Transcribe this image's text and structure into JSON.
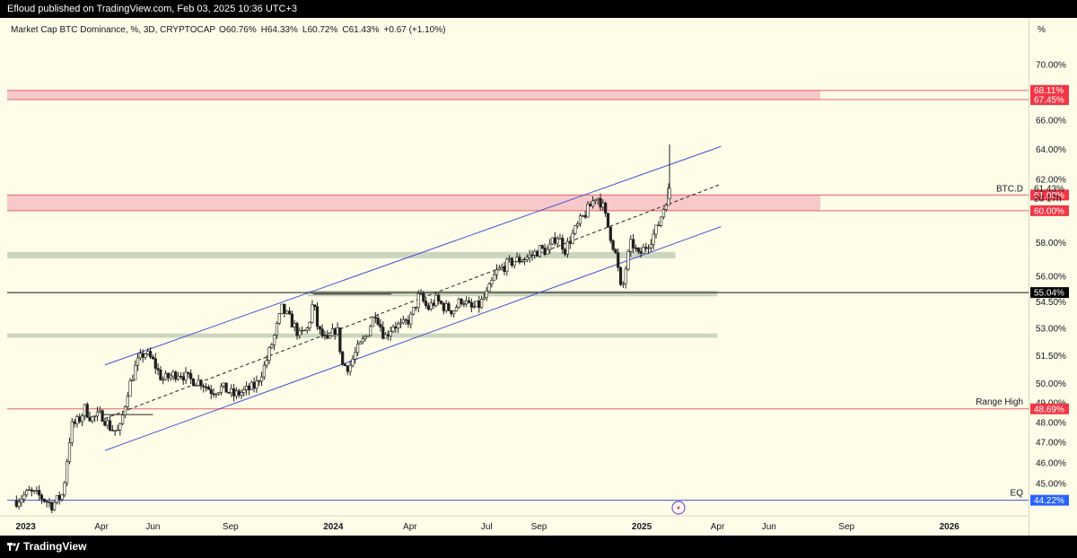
{
  "header": {
    "published": "Efloud published on TradingView.com, Feb 03, 2025 10:36 UTC+3"
  },
  "footer": {
    "brand": "TradingView"
  },
  "colors": {
    "background": "#fffde8",
    "candle": "#1e1e1e",
    "channel": "#3f51d8",
    "red_zone": "#f8c9c9",
    "red_line": "#e8616a",
    "green_zone": "#ccd6bf",
    "price_label_red": "#f23645",
    "price_label_blue": "#2962ff"
  },
  "chart_data": {
    "type": "candlestick",
    "title": "Market Cap BTC Dominance, %, 3D, CRYPTOCAP",
    "ohlc_legend": {
      "o": "O60.76%",
      "h": "H64.33%",
      "l": "L60.72%",
      "c": "C61.43%",
      "chg": "+0.67 (+1.10%)"
    },
    "y_unit_label": "%",
    "y_scale": "log",
    "ylim": [
      43.5,
      72.0
    ],
    "y_ticks": [
      "70.00%",
      "66.00%",
      "64.00%",
      "62.00%",
      "58.00%",
      "56.00%",
      "54.50%",
      "53.00%",
      "51.50%",
      "50.00%",
      "49.00%",
      "48.00%",
      "47.00%",
      "46.00%",
      "45.00%"
    ],
    "x_ticks": [
      {
        "label": "2023",
        "date": "2023-01-01",
        "bold": true
      },
      {
        "label": "Apr",
        "date": "2023-04-01"
      },
      {
        "label": "Jun",
        "date": "2023-06-01"
      },
      {
        "label": "Sep",
        "date": "2023-09-01"
      },
      {
        "label": "2024",
        "date": "2024-01-01",
        "bold": true
      },
      {
        "label": "Apr",
        "date": "2024-04-01"
      },
      {
        "label": "Jul",
        "date": "2024-07-01"
      },
      {
        "label": "Sep",
        "date": "2024-09-01"
      },
      {
        "label": "2025",
        "date": "2025-01-01",
        "bold": true
      },
      {
        "label": "Apr",
        "date": "2025-04-01"
      },
      {
        "label": "Jun",
        "date": "2025-06-01"
      },
      {
        "label": "Sep",
        "date": "2025-09-01"
      },
      {
        "label": "2026",
        "date": "2026-01-01",
        "bold": true
      }
    ],
    "x_range": [
      "2022-12-10",
      "2026-04-05"
    ],
    "price_anchors": [
      [
        "2022-12-21",
        44.2
      ],
      [
        "2023-01-05",
        44.6
      ],
      [
        "2023-01-18",
        44.4
      ],
      [
        "2023-02-01",
        44.0
      ],
      [
        "2023-02-14",
        44.5
      ],
      [
        "2023-02-24",
        47.8
      ],
      [
        "2023-03-05",
        48.1
      ],
      [
        "2023-03-12",
        48.7
      ],
      [
        "2023-03-20",
        48.2
      ],
      [
        "2023-04-01",
        48.4
      ],
      [
        "2023-04-12",
        47.7
      ],
      [
        "2023-04-22",
        47.5
      ],
      [
        "2023-05-02",
        49.6
      ],
      [
        "2023-05-12",
        51.0
      ],
      [
        "2023-05-22",
        51.7
      ],
      [
        "2023-06-01",
        51.2
      ],
      [
        "2023-06-12",
        50.2
      ],
      [
        "2023-06-22",
        50.4
      ],
      [
        "2023-07-02",
        50.6
      ],
      [
        "2023-07-15",
        50.2
      ],
      [
        "2023-07-28",
        50.1
      ],
      [
        "2023-08-10",
        49.6
      ],
      [
        "2023-08-22",
        49.8
      ],
      [
        "2023-09-05",
        49.4
      ],
      [
        "2023-09-18",
        49.6
      ],
      [
        "2023-10-01",
        49.9
      ],
      [
        "2023-10-12",
        51.0
      ],
      [
        "2023-10-22",
        52.4
      ],
      [
        "2023-11-01",
        54.1
      ],
      [
        "2023-11-12",
        53.4
      ],
      [
        "2023-11-22",
        52.6
      ],
      [
        "2023-12-02",
        53.0
      ],
      [
        "2023-12-08",
        54.5
      ],
      [
        "2023-12-14",
        52.9
      ],
      [
        "2023-12-25",
        52.2
      ],
      [
        "2024-01-05",
        53.1
      ],
      [
        "2024-01-12",
        51.0
      ],
      [
        "2024-01-20",
        50.9
      ],
      [
        "2024-01-28",
        51.7
      ],
      [
        "2024-02-08",
        52.5
      ],
      [
        "2024-02-20",
        53.9
      ],
      [
        "2024-03-02",
        52.5
      ],
      [
        "2024-03-12",
        53.2
      ],
      [
        "2024-03-22",
        53.1
      ],
      [
        "2024-04-02",
        53.6
      ],
      [
        "2024-04-12",
        54.9
      ],
      [
        "2024-04-22",
        54.1
      ],
      [
        "2024-05-02",
        54.6
      ],
      [
        "2024-05-12",
        54.2
      ],
      [
        "2024-05-22",
        54.0
      ],
      [
        "2024-06-02",
        54.7
      ],
      [
        "2024-06-12",
        54.1
      ],
      [
        "2024-06-22",
        54.3
      ],
      [
        "2024-07-02",
        55.0
      ],
      [
        "2024-07-12",
        56.2
      ],
      [
        "2024-07-22",
        56.6
      ],
      [
        "2024-08-02",
        56.9
      ],
      [
        "2024-08-12",
        57.0
      ],
      [
        "2024-08-22",
        57.2
      ],
      [
        "2024-09-02",
        57.6
      ],
      [
        "2024-09-12",
        57.5
      ],
      [
        "2024-09-22",
        58.5
      ],
      [
        "2024-10-02",
        57.6
      ],
      [
        "2024-10-12",
        58.6
      ],
      [
        "2024-10-22",
        59.5
      ],
      [
        "2024-11-01",
        60.3
      ],
      [
        "2024-11-08",
        61.0
      ],
      [
        "2024-11-15",
        60.4
      ],
      [
        "2024-11-22",
        59.0
      ],
      [
        "2024-12-02",
        57.1
      ],
      [
        "2024-12-08",
        54.9
      ],
      [
        "2024-12-14",
        56.8
      ],
      [
        "2024-12-20",
        58.1
      ],
      [
        "2024-12-28",
        57.2
      ],
      [
        "2025-01-06",
        57.8
      ],
      [
        "2025-01-14",
        58.4
      ],
      [
        "2025-01-20",
        59.0
      ],
      [
        "2025-01-26",
        60.0
      ],
      [
        "2025-02-03",
        61.4
      ]
    ],
    "annotations": [
      {
        "kind": "zone",
        "color": "red",
        "y_low": 67.45,
        "y_high": 68.11,
        "x_start": "2022-12-10",
        "x_end": "2025-08-01"
      },
      {
        "kind": "zone",
        "color": "red",
        "y_low": 60.0,
        "y_high": 61.0,
        "x_start": "2022-12-10",
        "x_end": "2025-08-01"
      },
      {
        "kind": "zone",
        "color": "green",
        "y_low": 57.06,
        "y_high": 57.45,
        "x_start": "2022-12-10",
        "x_end": "2025-02-10"
      },
      {
        "kind": "zone",
        "color": "green",
        "y_low": 54.82,
        "y_high": 55.15,
        "x_start": "2023-12-01",
        "x_end": "2025-04-01"
      },
      {
        "kind": "zone",
        "color": "green",
        "y_low": 52.48,
        "y_high": 52.72,
        "x_start": "2022-12-10",
        "x_end": "2025-04-01"
      },
      {
        "kind": "hline",
        "color": "black",
        "y": 55.04
      },
      {
        "kind": "hline",
        "color": "red",
        "y": 48.69
      },
      {
        "kind": "hline",
        "color": "blue",
        "y": 44.22
      },
      {
        "kind": "channel_upper",
        "from": [
          "2023-04-05",
          51.0
        ],
        "to": [
          "2025-04-05",
          64.2
        ]
      },
      {
        "kind": "channel_mid",
        "from": [
          "2023-04-05",
          48.2
        ],
        "to": [
          "2025-04-05",
          61.7
        ]
      },
      {
        "kind": "channel_lower",
        "from": [
          "2023-04-05",
          46.6
        ],
        "to": [
          "2025-04-05",
          59.0
        ]
      },
      {
        "kind": "segment",
        "from": [
          "2023-04-01",
          48.4
        ],
        "to": [
          "2023-06-01",
          48.4
        ]
      },
      {
        "kind": "segment",
        "from": [
          "2023-12-08",
          54.95
        ],
        "to": [
          "2024-03-10",
          54.95
        ]
      }
    ],
    "right_labels": [
      {
        "text": "68.11%",
        "y": 68.11,
        "style": "red"
      },
      {
        "text": "67.45%",
        "y": 67.45,
        "style": "red"
      },
      {
        "text": "61.00%",
        "y": 61.0,
        "style": "red"
      },
      {
        "text": "60.00%",
        "y": 60.0,
        "style": "red"
      },
      {
        "text": "55.04%",
        "y": 55.04,
        "style": "black"
      },
      {
        "text": "48.69%",
        "y": 48.69,
        "style": "red"
      },
      {
        "text": "44.22%",
        "y": 44.22,
        "style": "blue"
      }
    ],
    "current_price": {
      "value": "61.43%",
      "y": 61.43,
      "countdown": "2d 17h",
      "series": "BTC.D"
    },
    "text_labels": [
      {
        "text": "Range High",
        "y": 48.69
      },
      {
        "text": "EQ",
        "y": 44.22
      }
    ]
  }
}
